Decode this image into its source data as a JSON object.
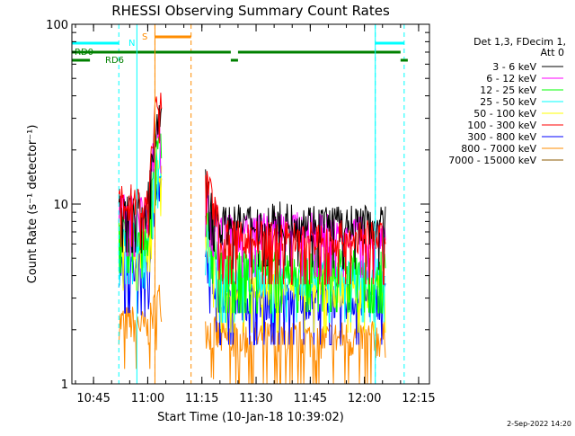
{
  "chart_data": {
    "type": "line",
    "title": "RHESSI Observing Summary Count Rates",
    "xlabel": "Start Time (10-Jan-18 10:39:02)",
    "ylabel": "Count Rate (s⁻¹ detector⁻¹)",
    "yscale": "log",
    "ylim": [
      1,
      100
    ],
    "xlim": [
      "10:39",
      "12:18"
    ],
    "x_ticks": [
      "10:45",
      "11:00",
      "11:15",
      "11:30",
      "11:45",
      "12:00",
      "12:15"
    ],
    "y_ticks": [
      "1",
      "10",
      "100"
    ],
    "footer_date": "2-Sep-2022 14:20",
    "legend": {
      "header": [
        "Det 1,3, FDecim 1,",
        "Att 0"
      ],
      "placement": "right"
    },
    "series": [
      {
        "name": "3 - 6 keV",
        "color": "#000000",
        "data": [
          [
            "10:57",
            9.8
          ],
          [
            "11:00",
            9.5
          ],
          [
            "11:03",
            30
          ],
          [
            "11:20",
            7.8
          ],
          [
            "11:35",
            8.3
          ],
          [
            "11:50",
            8.0
          ],
          [
            "12:05",
            7.8
          ]
        ]
      },
      {
        "name": "6 - 12 keV",
        "color": "#ff00ff",
        "data": [
          [
            "10:57",
            9.3
          ],
          [
            "11:00",
            9.0
          ],
          [
            "11:03",
            28
          ],
          [
            "11:20",
            7.0
          ],
          [
            "11:35",
            7.2
          ],
          [
            "11:50",
            7.2
          ],
          [
            "12:05",
            7.0
          ]
        ]
      },
      {
        "name": "12 - 25 keV",
        "color": "#00ff00",
        "data": [
          [
            "10:57",
            7.5
          ],
          [
            "11:00",
            6.5
          ],
          [
            "11:03",
            22
          ],
          [
            "11:20",
            4.5
          ],
          [
            "11:35",
            4.5
          ],
          [
            "11:50",
            4.6
          ],
          [
            "12:05",
            4.5
          ]
        ]
      },
      {
        "name": "25 - 50 keV",
        "color": "#00ffff",
        "data": [
          [
            "10:57",
            6.5
          ],
          [
            "11:00",
            6.0
          ],
          [
            "11:03",
            18
          ],
          [
            "11:20",
            4.0
          ],
          [
            "11:35",
            4.0
          ],
          [
            "11:50",
            4.0
          ],
          [
            "12:05",
            4.0
          ]
        ]
      },
      {
        "name": "50 - 100 keV",
        "color": "#ffff00",
        "data": [
          [
            "10:57",
            6.0
          ],
          [
            "11:00",
            5.5
          ],
          [
            "11:03",
            16
          ],
          [
            "11:20",
            3.5
          ],
          [
            "11:35",
            3.5
          ],
          [
            "11:50",
            3.5
          ],
          [
            "12:05",
            3.5
          ]
        ]
      },
      {
        "name": "100 - 300 keV",
        "color": "#ff0000",
        "data": [
          [
            "10:57",
            10.5
          ],
          [
            "11:00",
            9.8
          ],
          [
            "11:03",
            40
          ],
          [
            "11:20",
            6.5
          ],
          [
            "11:35",
            6.5
          ],
          [
            "11:50",
            6.5
          ],
          [
            "12:05",
            6.5
          ]
        ]
      },
      {
        "name": "300 - 800 keV",
        "color": "#0000ff",
        "data": [
          [
            "10:57",
            4.5
          ],
          [
            "11:00",
            4.2
          ],
          [
            "11:03",
            12
          ],
          [
            "11:20",
            3.0
          ],
          [
            "11:35",
            3.0
          ],
          [
            "11:50",
            3.0
          ],
          [
            "12:05",
            3.0
          ]
        ]
      },
      {
        "name": "800 - 7000 keV",
        "color": "#ff8c00",
        "data": [
          [
            "10:57",
            2.2
          ],
          [
            "11:00",
            2.0
          ],
          [
            "11:03",
            3.0
          ],
          [
            "11:20",
            1.8
          ],
          [
            "11:35",
            1.8
          ],
          [
            "11:50",
            1.8
          ],
          [
            "12:05",
            1.8
          ]
        ]
      },
      {
        "name": "7000 - 15000 keV",
        "color": "#8b5a00",
        "data": []
      }
    ],
    "flags": [
      {
        "label": "N",
        "color": "#00ffff",
        "segments": [
          [
            "10:39",
            "10:52"
          ],
          [
            "12:03",
            "12:11"
          ]
        ]
      },
      {
        "label": "S",
        "color": "#ff8c00",
        "segments": [
          [
            "11:02",
            "11:12"
          ]
        ]
      },
      {
        "label": "RD0",
        "color": "#008000",
        "segments": [
          [
            "10:39",
            "11:23"
          ],
          [
            "11:25",
            "12:10"
          ]
        ]
      },
      {
        "label": "RD6",
        "color": "#008000",
        "segments": [
          [
            "10:39",
            "10:44"
          ],
          [
            "11:23",
            "11:25"
          ],
          [
            "12:10",
            "12:12"
          ]
        ]
      }
    ]
  }
}
